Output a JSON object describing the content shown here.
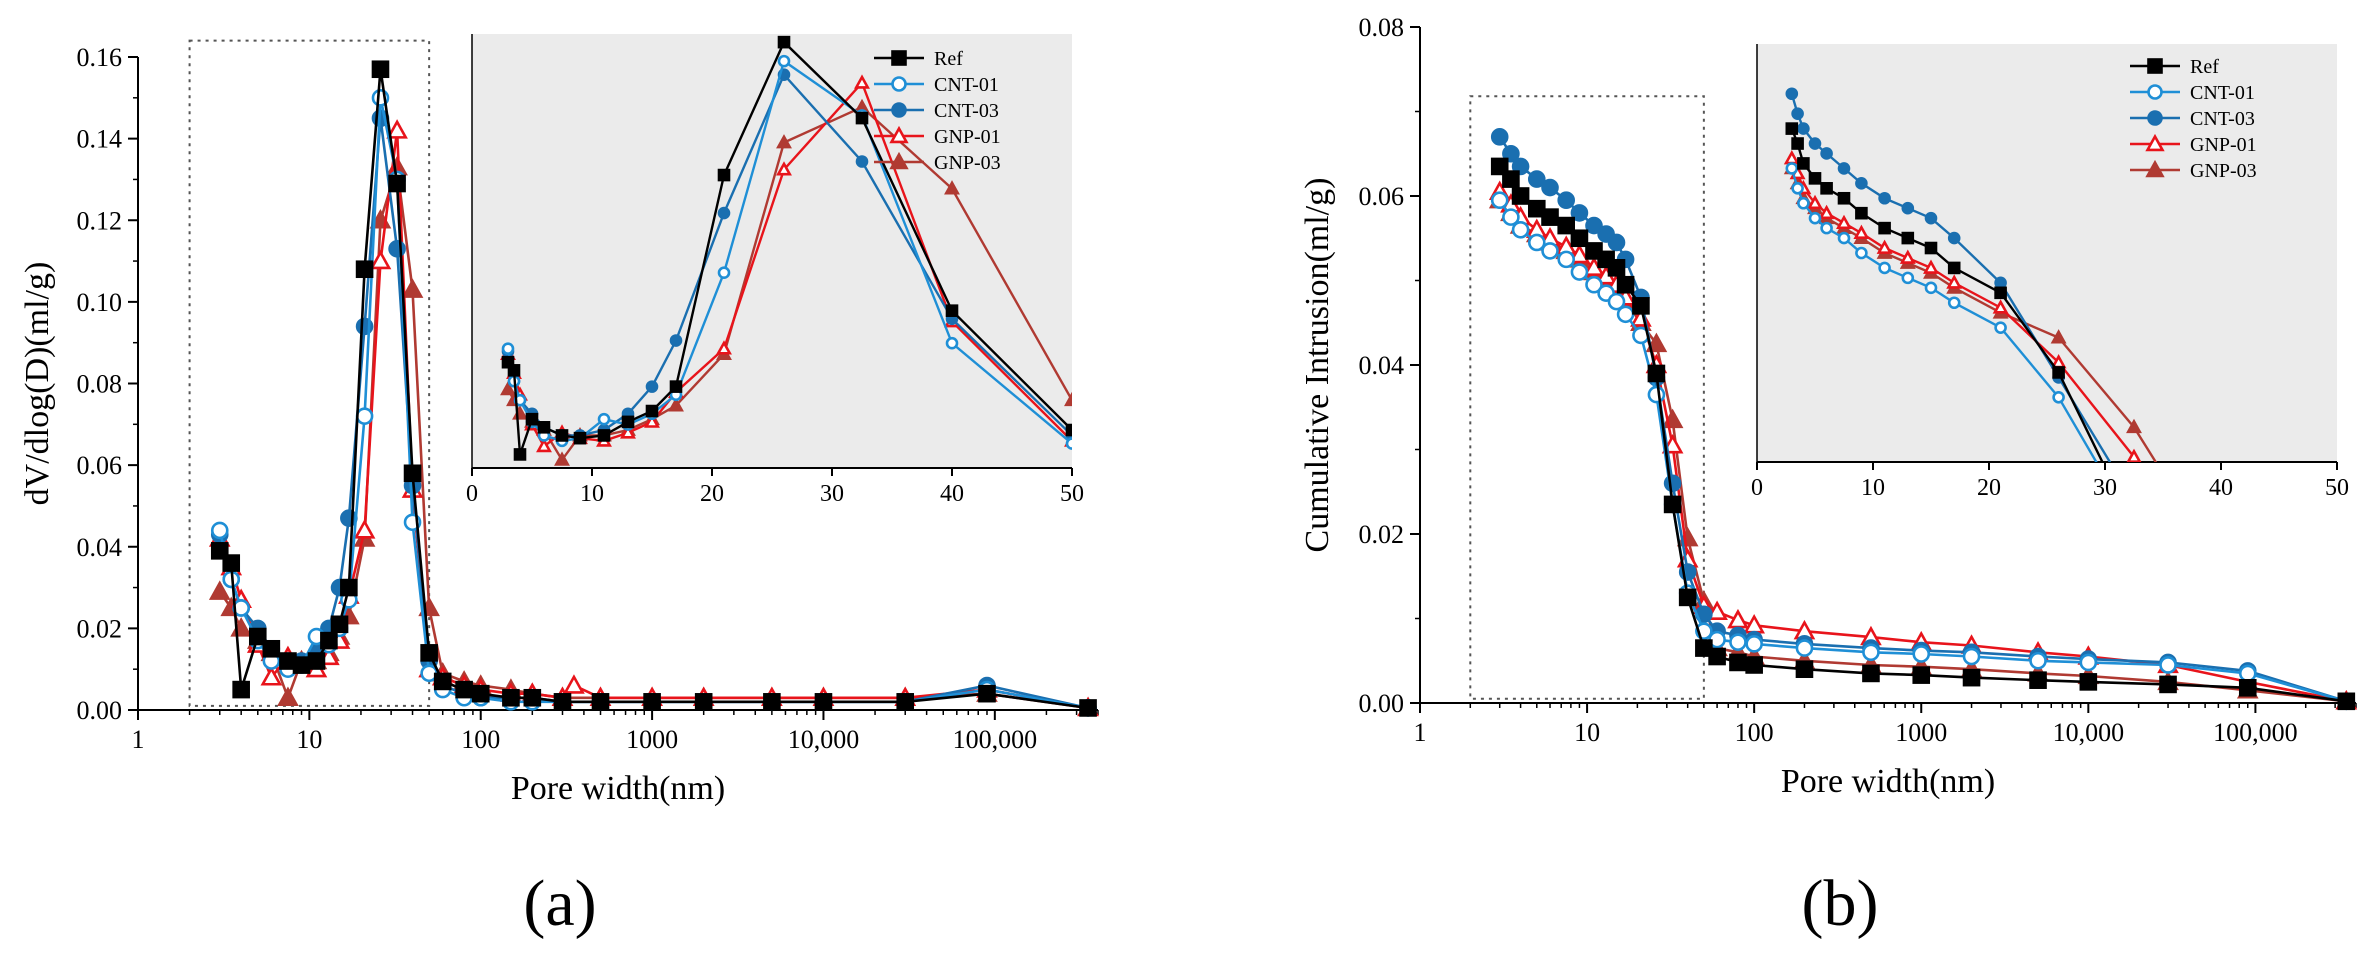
{
  "figure_labels": [
    "(a)",
    "(b)"
  ],
  "series_styles": {
    "Ref": {
      "color": "#000000",
      "marker": "square",
      "fill": true
    },
    "CNT-01": {
      "color": "#1f8fd6",
      "marker": "circle",
      "fill": false
    },
    "CNT-03": {
      "color": "#1a6fb0",
      "marker": "circle",
      "fill": true
    },
    "GNP-01": {
      "color": "#e8141b",
      "marker": "triangle",
      "fill": false
    },
    "GNP-03": {
      "color": "#b03a32",
      "marker": "triangle",
      "fill": true
    }
  },
  "chart_data": [
    {
      "type": "line",
      "panel": "(a)",
      "title": "",
      "xlabel": "Pore width(nm)",
      "ylabel": "dV/dlog(D)(ml/g)",
      "xscale": "log",
      "xlim": [
        1,
        400000
      ],
      "ylim": [
        0,
        0.16
      ],
      "xticks": [
        1,
        10,
        100,
        1000,
        10000,
        100000
      ],
      "xtick_labels": [
        "1",
        "10",
        "100",
        "1000",
        "10,000",
        "100,000"
      ],
      "yticks": [
        0,
        0.02,
        0.04,
        0.06,
        0.08,
        0.1,
        0.12,
        0.14,
        0.16
      ],
      "ytick_labels": [
        "0.00",
        "0.02",
        "0.04",
        "0.06",
        "0.08",
        "0.10",
        "0.12",
        "0.14",
        "0.16"
      ],
      "zoom_box": {
        "x": [
          2,
          50
        ],
        "y": [
          0.001,
          0.164
        ]
      },
      "series": [
        {
          "name": "Ref",
          "x": [
            3,
            3.5,
            4,
            5,
            6,
            7.5,
            9,
            11,
            13,
            15,
            17,
            21,
            26,
            32.5,
            40,
            50,
            60,
            80,
            100,
            150,
            200,
            300,
            500,
            1000,
            2000,
            5000,
            10000,
            30000,
            90000,
            350000
          ],
          "y": [
            0.039,
            0.036,
            0.005,
            0.018,
            0.015,
            0.012,
            0.011,
            0.012,
            0.017,
            0.021,
            0.03,
            0.108,
            0.157,
            0.129,
            0.058,
            0.014,
            0.007,
            0.005,
            0.004,
            0.003,
            0.003,
            0.002,
            0.002,
            0.002,
            0.002,
            0.002,
            0.002,
            0.002,
            0.004,
            0.0005
          ]
        },
        {
          "name": "CNT-01",
          "x": [
            3,
            3.5,
            4,
            5,
            6,
            7.5,
            9,
            11,
            13,
            15,
            17,
            21,
            26,
            32.5,
            40,
            50,
            60,
            80,
            100,
            150,
            200,
            300,
            500,
            1000,
            2000,
            5000,
            10000,
            30000,
            90000,
            350000
          ],
          "y": [
            0.044,
            0.032,
            0.025,
            0.017,
            0.012,
            0.01,
            0.011,
            0.018,
            0.016,
            0.02,
            0.027,
            0.072,
            0.15,
            0.13,
            0.046,
            0.009,
            0.005,
            0.003,
            0.003,
            0.002,
            0.002,
            0.002,
            0.002,
            0.002,
            0.002,
            0.002,
            0.002,
            0.002,
            0.005,
            0.0005
          ]
        },
        {
          "name": "CNT-03",
          "x": [
            3,
            3.5,
            4,
            5,
            6,
            7.5,
            9,
            11,
            13,
            15,
            17,
            21,
            26,
            32.5,
            40,
            50,
            60,
            80,
            100,
            150,
            200,
            300,
            500,
            1000,
            2000,
            5000,
            10000,
            30000,
            90000,
            350000
          ],
          "y": [
            0.043,
            0.032,
            0.025,
            0.02,
            0.015,
            0.012,
            0.012,
            0.014,
            0.02,
            0.03,
            0.047,
            0.094,
            0.145,
            0.113,
            0.055,
            0.012,
            0.006,
            0.004,
            0.003,
            0.003,
            0.003,
            0.002,
            0.002,
            0.002,
            0.002,
            0.002,
            0.002,
            0.002,
            0.006,
            0.0005
          ]
        },
        {
          "name": "GNP-01",
          "x": [
            3,
            3.5,
            4,
            5,
            6,
            7.5,
            9,
            11,
            13,
            15,
            17,
            21,
            26,
            32.5,
            40,
            50,
            60,
            80,
            100,
            150,
            200,
            300,
            350,
            500,
            1000,
            2000,
            5000,
            10000,
            30000,
            90000,
            350000
          ],
          "y": [
            0.042,
            0.035,
            0.027,
            0.016,
            0.008,
            0.013,
            0.011,
            0.01,
            0.013,
            0.017,
            0.028,
            0.044,
            0.11,
            0.142,
            0.054,
            0.01,
            0.008,
            0.006,
            0.005,
            0.004,
            0.004,
            0.003,
            0.006,
            0.003,
            0.003,
            0.003,
            0.003,
            0.003,
            0.003,
            0.005,
            0.0005
          ]
        },
        {
          "name": "GNP-03",
          "x": [
            3,
            3.5,
            4,
            5,
            6,
            7.5,
            9,
            11,
            13,
            15,
            17,
            21,
            26,
            32.5,
            40,
            50,
            60,
            80,
            100,
            150,
            200,
            300,
            500,
            1000,
            2000,
            5000,
            10000,
            30000,
            90000,
            350000
          ],
          "y": [
            0.029,
            0.025,
            0.02,
            0.017,
            0.014,
            0.003,
            0.012,
            0.012,
            0.014,
            0.018,
            0.023,
            0.042,
            0.12,
            0.133,
            0.103,
            0.025,
            0.009,
            0.007,
            0.006,
            0.005,
            0.004,
            0.003,
            0.003,
            0.003,
            0.003,
            0.003,
            0.003,
            0.003,
            0.004,
            0.0005
          ]
        }
      ],
      "inset": {
        "xlim": [
          0,
          50
        ],
        "ylim": [
          0,
          0.16
        ],
        "xticks": [
          0,
          10,
          20,
          30,
          40,
          50
        ],
        "xtick_labels": [
          "0",
          "10",
          "20",
          "30",
          "40",
          "50"
        ],
        "legend_location": "top-right",
        "legend": [
          "Ref",
          "CNT-01",
          "CNT-03",
          "GNP-01",
          "GNP-03"
        ]
      }
    },
    {
      "type": "line",
      "panel": "(b)",
      "title": "",
      "xlabel": "Pore width(nm)",
      "ylabel": "Cumulative Intrusion(ml/g)",
      "xscale": "log",
      "xlim": [
        1,
        400000
      ],
      "ylim": [
        0,
        0.08
      ],
      "xticks": [
        1,
        10,
        100,
        1000,
        10000,
        100000
      ],
      "xtick_labels": [
        "1",
        "10",
        "100",
        "1000",
        "10,000",
        "100,000"
      ],
      "yticks": [
        0,
        0.02,
        0.04,
        0.06,
        0.08
      ],
      "ytick_labels": [
        "0.00",
        "0.02",
        "0.04",
        "0.06",
        "0.08"
      ],
      "zoom_box": {
        "x": [
          2,
          50
        ],
        "y": [
          0.0005,
          0.0718
        ]
      },
      "series": [
        {
          "name": "Ref",
          "x": [
            3,
            3.5,
            4,
            5,
            6,
            7.5,
            9,
            11,
            13,
            15,
            17,
            21,
            26,
            32.5,
            40,
            50,
            60,
            80,
            100,
            200,
            500,
            1000,
            2000,
            5000,
            10000,
            30000,
            90000,
            350000
          ],
          "y": [
            0.0635,
            0.062,
            0.06,
            0.0585,
            0.0575,
            0.0565,
            0.055,
            0.0535,
            0.0525,
            0.0515,
            0.0495,
            0.047,
            0.039,
            0.0235,
            0.0125,
            0.0065,
            0.0055,
            0.0048,
            0.0045,
            0.004,
            0.0035,
            0.0033,
            0.003,
            0.0027,
            0.0025,
            0.0022,
            0.0018,
            0.0002
          ]
        },
        {
          "name": "CNT-01",
          "x": [
            3,
            3.5,
            4,
            5,
            6,
            7.5,
            9,
            11,
            13,
            15,
            17,
            21,
            26,
            32.5,
            40,
            50,
            60,
            80,
            100,
            200,
            500,
            1000,
            2000,
            5000,
            10000,
            30000,
            90000,
            350000
          ],
          "y": [
            0.0595,
            0.0575,
            0.056,
            0.0545,
            0.0535,
            0.0525,
            0.051,
            0.0495,
            0.0485,
            0.0475,
            0.046,
            0.0435,
            0.0365,
            0.0235,
            0.013,
            0.0085,
            0.0075,
            0.0072,
            0.007,
            0.0065,
            0.006,
            0.0058,
            0.0055,
            0.005,
            0.0048,
            0.0045,
            0.0035,
            0.0002
          ]
        },
        {
          "name": "CNT-03",
          "x": [
            3,
            3.5,
            4,
            5,
            6,
            7.5,
            9,
            11,
            13,
            15,
            17,
            21,
            26,
            32.5,
            40,
            50,
            60,
            80,
            100,
            200,
            500,
            1000,
            2000,
            5000,
            10000,
            30000,
            90000,
            350000
          ],
          "y": [
            0.067,
            0.065,
            0.0635,
            0.062,
            0.061,
            0.0595,
            0.058,
            0.0565,
            0.0555,
            0.0545,
            0.0525,
            0.048,
            0.0385,
            0.026,
            0.0155,
            0.0105,
            0.0085,
            0.008,
            0.0075,
            0.007,
            0.0065,
            0.0062,
            0.006,
            0.0055,
            0.0052,
            0.0048,
            0.0038,
            0.0002
          ]
        },
        {
          "name": "GNP-01",
          "x": [
            3,
            3.5,
            4,
            5,
            6,
            7.5,
            9,
            11,
            13,
            15,
            17,
            21,
            26,
            32.5,
            40,
            50,
            60,
            80,
            100,
            200,
            500,
            1000,
            2000,
            5000,
            10000,
            30000,
            90000,
            350000
          ],
          "y": [
            0.0605,
            0.059,
            0.0575,
            0.056,
            0.055,
            0.054,
            0.053,
            0.0515,
            0.0505,
            0.0495,
            0.048,
            0.0455,
            0.04,
            0.0305,
            0.017,
            0.0115,
            0.0108,
            0.0098,
            0.0092,
            0.0085,
            0.0078,
            0.0072,
            0.0068,
            0.006,
            0.0055,
            0.0045,
            0.0025,
            0.0002
          ]
        },
        {
          "name": "GNP-03",
          "x": [
            3,
            3.5,
            4,
            5,
            6,
            7.5,
            9,
            11,
            13,
            15,
            17,
            21,
            26,
            32.5,
            40,
            50,
            60,
            80,
            100,
            200,
            500,
            1000,
            2000,
            5000,
            10000,
            30000,
            90000,
            350000
          ],
          "y": [
            0.0595,
            0.058,
            0.0565,
            0.0555,
            0.0545,
            0.0535,
            0.0525,
            0.051,
            0.05,
            0.049,
            0.0475,
            0.045,
            0.0425,
            0.0335,
            0.0195,
            0.012,
            0.0065,
            0.006,
            0.0055,
            0.005,
            0.0045,
            0.0043,
            0.004,
            0.0035,
            0.0032,
            0.0025,
            0.0015,
            0.0002
          ]
        }
      ],
      "inset": {
        "xlim": [
          0,
          50
        ],
        "ylim": [
          0.03,
          0.072
        ],
        "xticks": [
          0,
          10,
          20,
          30,
          40,
          50
        ],
        "xtick_labels": [
          "0",
          "10",
          "20",
          "30",
          "40",
          "50"
        ],
        "legend_location": "top-left",
        "legend": [
          "Ref",
          "CNT-01",
          "CNT-03",
          "GNP-01",
          "GNP-03"
        ]
      }
    }
  ]
}
